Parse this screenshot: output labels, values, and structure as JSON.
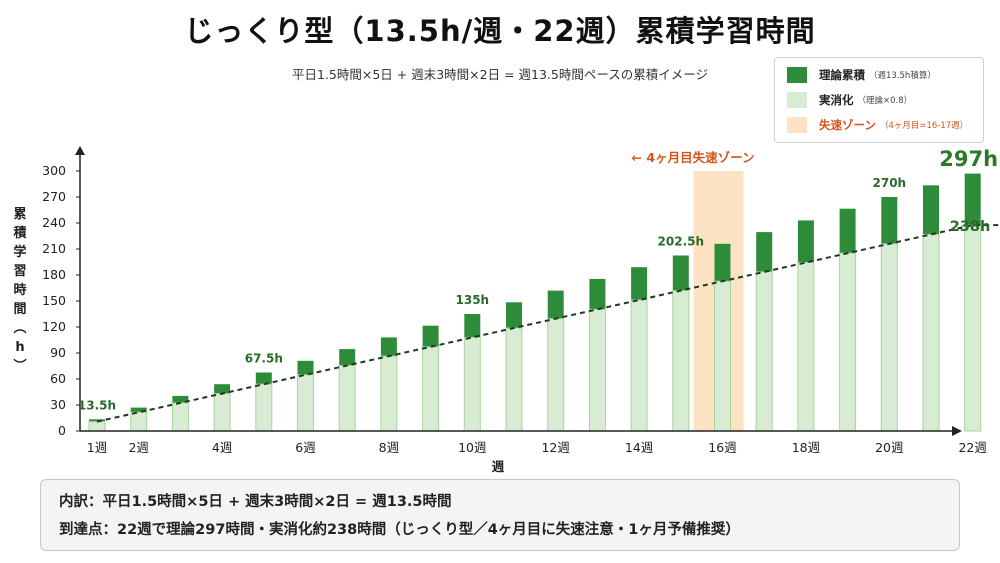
{
  "title": "じっくり型（13.5h/週・22週）累積学習時間",
  "subtitle": "平日1.5時間×5日 + 週末3時間×2日 = 週13.5時間ペースの累積イメージ",
  "legend": {
    "items": [
      {
        "label": "理論累積",
        "sub": "（週13.5h積算）",
        "color": "#2e8b3a"
      },
      {
        "label": "実消化",
        "sub": "（理論×0.8）",
        "color": "#d7ecd2"
      },
      {
        "label": "失速ゾーン",
        "sub": "（4ヶ月目=16-17週）",
        "color": "#fde3c4"
      }
    ]
  },
  "zone_label": "← 4ヶ月目失速ゾーン",
  "colors": {
    "theory": "#2e8b3a",
    "actual": "#d7ecd2",
    "actual_border": "#a9d4a0",
    "zone": "#fde3c4",
    "zone_text": "#d4541e",
    "trend": "#1f3b1f"
  },
  "chart_data": {
    "type": "bar",
    "xlabel": "週",
    "ylabel": "累積学習時間（h）",
    "ylim": [
      0,
      300
    ],
    "yticks": [
      0,
      30,
      60,
      90,
      120,
      150,
      180,
      210,
      240,
      270,
      300
    ],
    "x": [
      1,
      2,
      3,
      4,
      5,
      6,
      7,
      8,
      9,
      10,
      11,
      12,
      13,
      14,
      15,
      16,
      17,
      18,
      19,
      20,
      21,
      22
    ],
    "x_tick_labels": {
      "1": "1週",
      "2": "2週",
      "4": "4週",
      "6": "6週",
      "8": "8週",
      "10": "10週",
      "12": "12週",
      "14": "14週",
      "16": "16週",
      "18": "18週",
      "20": "20週",
      "22": "22週"
    },
    "series": [
      {
        "name": "理論累積",
        "values": [
          13.5,
          27,
          40.5,
          54,
          67.5,
          81,
          94.5,
          108,
          121.5,
          135,
          148.5,
          162,
          175.5,
          189,
          202.5,
          216,
          229.5,
          243,
          256.5,
          270,
          283.5,
          297
        ]
      },
      {
        "name": "実消化",
        "values": [
          10.8,
          21.6,
          32.4,
          43.2,
          54,
          64.8,
          75.6,
          86.4,
          97.2,
          108,
          118.8,
          129.6,
          140.4,
          151.2,
          162,
          172.8,
          183.6,
          194.4,
          205.2,
          216,
          226.8,
          237.6
        ]
      }
    ],
    "annotations": [
      {
        "week": 1,
        "text": "13.5h"
      },
      {
        "week": 5,
        "text": "67.5h"
      },
      {
        "week": 10,
        "text": "135h"
      },
      {
        "week": 15,
        "text": "202.5h"
      },
      {
        "week": 20,
        "text": "270h"
      }
    ],
    "end_labels": {
      "theory": "297h",
      "actual": "238h"
    },
    "zone_weeks": [
      16,
      17
    ]
  },
  "notes": {
    "line1": "内訳：平日1.5時間×5日 + 週末3時間×2日 = 週13.5時間",
    "line2": "到達点：22週で理論297時間・実消化約238時間（じっくり型／4ヶ月目に失速注意・1ヶ月予備推奨）"
  }
}
